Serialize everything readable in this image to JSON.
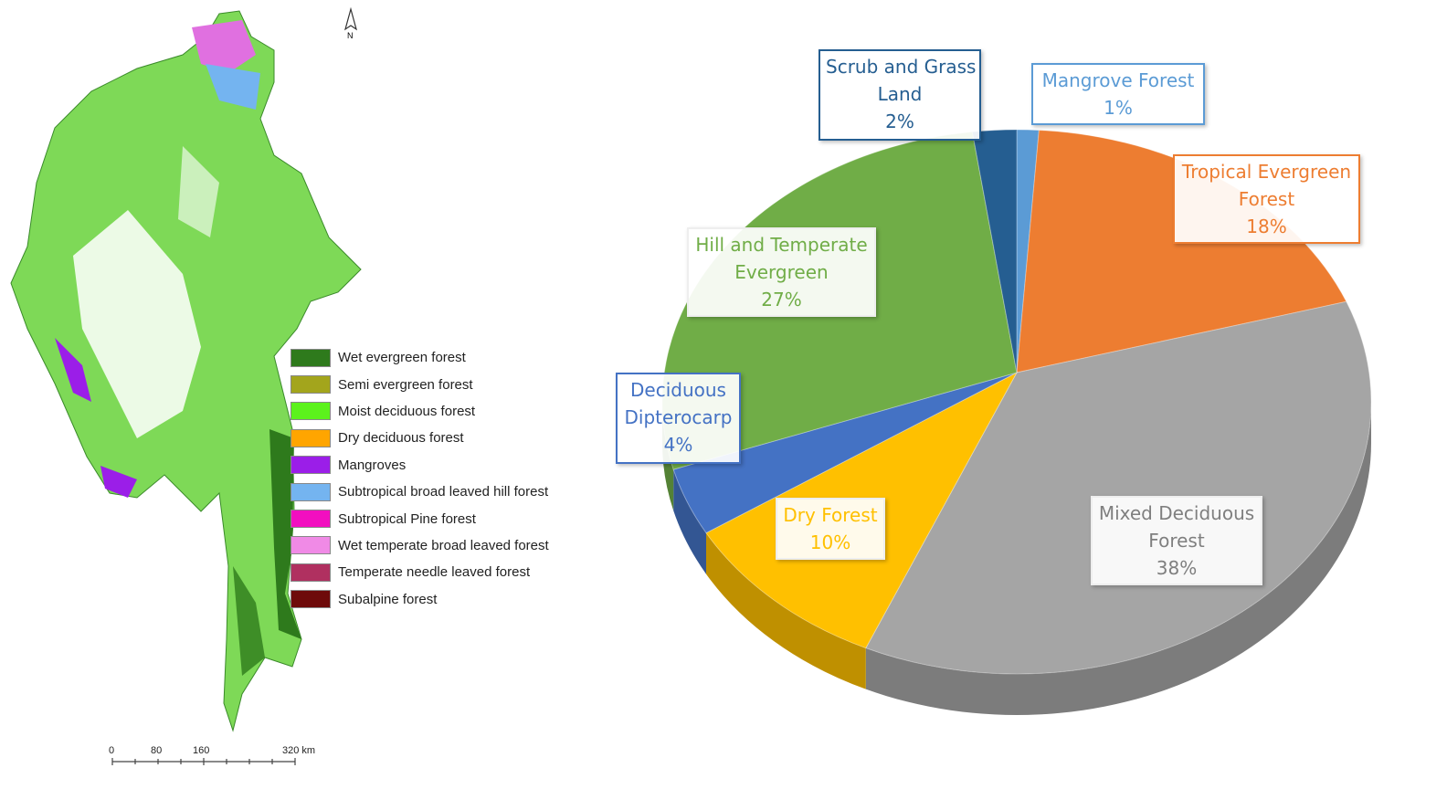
{
  "map": {
    "north_label": "N",
    "legend": [
      {
        "label": "Wet evergreen forest",
        "color": "#2e7a1c"
      },
      {
        "label": "Semi evergreen forest",
        "color": "#a3a51c"
      },
      {
        "label": "Moist deciduous forest",
        "color": "#5cf21c"
      },
      {
        "label": "Dry deciduous forest",
        "color": "#ffa500"
      },
      {
        "label": "Mangroves",
        "color": "#9b1ee8"
      },
      {
        "label": "Subtropical broad leaved hill forest",
        "color": "#74b4f0"
      },
      {
        "label": "Subtropical Pine forest",
        "color": "#f20fc0"
      },
      {
        "label": "Wet temperate broad leaved forest",
        "color": "#f08ae6"
      },
      {
        "label": "Temperate needle leaved forest",
        "color": "#b03060"
      },
      {
        "label": "Subalpine forest",
        "color": "#6e0a0a"
      }
    ],
    "scale_labels": [
      "0",
      "80",
      "160",
      "320 km"
    ]
  },
  "chart_data": {
    "type": "pie",
    "style": "3d",
    "start": "top, clockwise",
    "slices": [
      {
        "name": "Mangrove Forest",
        "value": 1,
        "label": "1%",
        "color": "#5b9bd5"
      },
      {
        "name": "Tropical Evergreen Forest",
        "value": 18,
        "label": "18%",
        "color": "#ed7d31"
      },
      {
        "name": "Mixed Deciduous Forest",
        "value": 38,
        "label": "38%",
        "color": "#a5a5a5"
      },
      {
        "name": "Dry Forest",
        "value": 10,
        "label": "10%",
        "color": "#ffc000"
      },
      {
        "name": "Deciduous Dipterocarp",
        "value": 4,
        "label": "4%",
        "color": "#4472c4"
      },
      {
        "name": "Hill and Temperate Evergreen",
        "value": 27,
        "label": "27%",
        "color": "#70ad47"
      },
      {
        "name": "Scrub and Grass Land",
        "value": 2,
        "label": "2%",
        "color": "#255e91"
      }
    ],
    "label_lines": [
      [
        "Mangrove Forest"
      ],
      [
        "Tropical Evergreen",
        "Forest"
      ],
      [
        "Mixed Deciduous",
        "Forest"
      ],
      [
        "Dry Forest"
      ],
      [
        "Deciduous",
        "Dipterocarp"
      ],
      [
        "Hill and Temperate",
        "Evergreen"
      ],
      [
        "Scrub and Grass",
        "Land"
      ]
    ]
  }
}
